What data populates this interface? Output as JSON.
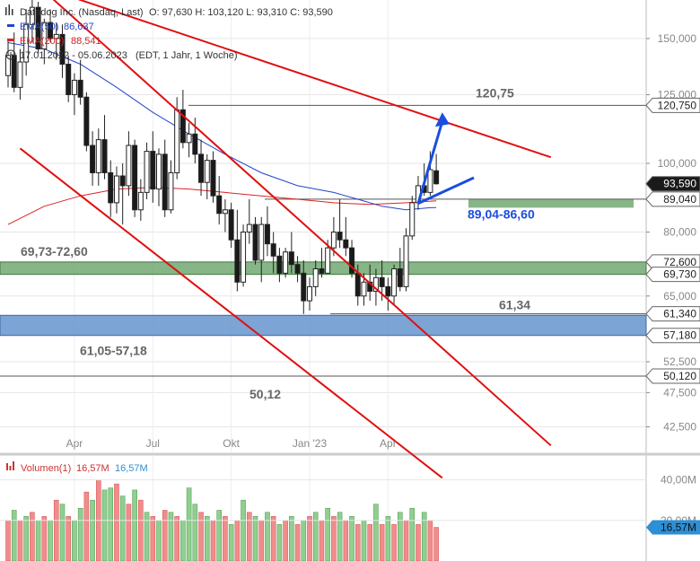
{
  "header": {
    "title": "Datadog Inc. (Nasdaq, Last)",
    "ohlc": "O: 97,630  H: 103,120  L: 93,310  C: 93,590",
    "ema50_label": "EMA(50)",
    "ema50_value": "86,637",
    "ema200_label": "EMA(200)",
    "ema200_value": "88,541",
    "period": "17.01.2022 - 05.06.2023",
    "period_note": "(EDT, 1 Jahr, 1 Woche)"
  },
  "colors": {
    "up": "#ffffff",
    "down": "#1a1a1a",
    "ema50": "#2244cc",
    "ema200": "#dd2222",
    "trendline": "#e01010",
    "zone_green": "#5f9c5f",
    "zone_blue": "#5b8dc9",
    "arrow": "#1a4ee0",
    "price_tag": "#1a1a1a",
    "vol_up": "#8fcf8f",
    "vol_down": "#f28c8c",
    "vol_tag": "#2d8fd6"
  },
  "price_axis": {
    "ticks": [
      {
        "value": 150,
        "label": "150,000"
      },
      {
        "value": 125,
        "label": "125,000"
      },
      {
        "value": 100,
        "label": "100,000"
      },
      {
        "value": 80,
        "label": "80,000"
      },
      {
        "value": 65,
        "label": "65,000"
      },
      {
        "value": 52.5,
        "label": "52,500"
      },
      {
        "value": 47.5,
        "label": "47,500"
      },
      {
        "value": 42.5,
        "label": "42,500"
      }
    ],
    "tags": [
      {
        "value": 120.75,
        "label": "120,750",
        "style": "outline"
      },
      {
        "value": 93.59,
        "label": "93,590",
        "style": "dark"
      },
      {
        "value": 89.04,
        "label": "89,040",
        "style": "outline"
      },
      {
        "value": 72.6,
        "label": "72,600",
        "style": "outline"
      },
      {
        "value": 69.73,
        "label": "69,730",
        "style": "outline"
      },
      {
        "value": 61.34,
        "label": "61,340",
        "style": "outline"
      },
      {
        "value": 57.18,
        "label": "57,180",
        "style": "outline"
      },
      {
        "value": 50.12,
        "label": "50,120",
        "style": "outline"
      }
    ]
  },
  "time_axis": {
    "labels": [
      {
        "week": 11,
        "label": "Apr"
      },
      {
        "week": 24,
        "label": "Jul"
      },
      {
        "week": 37,
        "label": "Okt"
      },
      {
        "week": 50,
        "label": "Jan '23"
      },
      {
        "week": 63,
        "label": "Apr"
      }
    ]
  },
  "annotations": {
    "level_high": {
      "value": 120.75,
      "text": "120,75"
    },
    "level_high_zone": {
      "text": "69,73-72,60",
      "low": 69.73,
      "high": 72.6
    },
    "level_low": {
      "value": 61.34,
      "text": "61,34"
    },
    "zone_low": {
      "text": "61,05-57,18",
      "low": 57.18,
      "high": 61.05
    },
    "level_bottom": {
      "value": 50.12,
      "text": "50,12"
    },
    "zone_target": {
      "text": "89,04-86,60",
      "low": 86.6,
      "high": 89.04
    }
  },
  "volume": {
    "label": "Volumen(1)",
    "value1": "16,57M",
    "value2": "16,57M",
    "ticks": [
      {
        "value": 40,
        "label": "40,00M"
      },
      {
        "value": 20,
        "label": "20,00M"
      }
    ],
    "tag": {
      "value": 16.57,
      "label": "16,57M"
    }
  },
  "chart_data": {
    "type": "candlestick",
    "title": "Datadog Inc. (Nasdaq, Last)",
    "ylim": [
      39,
      170
    ],
    "y_scale": "log",
    "candles": [
      [
        133,
        150,
        128,
        142
      ],
      [
        142,
        153,
        126,
        128
      ],
      [
        128,
        145,
        123,
        139
      ],
      [
        139,
        165,
        133,
        157
      ],
      [
        157,
        171,
        148,
        166
      ],
      [
        166,
        169,
        143,
        145
      ],
      [
        145,
        160,
        138,
        158
      ],
      [
        158,
        165,
        148,
        150
      ],
      [
        150,
        158,
        140,
        152
      ],
      [
        152,
        157,
        132,
        138
      ],
      [
        138,
        142,
        122,
        125
      ],
      [
        125,
        134,
        117,
        131
      ],
      [
        131,
        140,
        121,
        124
      ],
      [
        124,
        126,
        104,
        106
      ],
      [
        106,
        111,
        93,
        97
      ],
      [
        97,
        112,
        93,
        108
      ],
      [
        108,
        117,
        95,
        97
      ],
      [
        97,
        101,
        84,
        88
      ],
      [
        88,
        99,
        85,
        96
      ],
      [
        96,
        100,
        82,
        93
      ],
      [
        93,
        111,
        90,
        106
      ],
      [
        106,
        108,
        84,
        86
      ],
      [
        86,
        95,
        83,
        91
      ],
      [
        91,
        107,
        89,
        104
      ],
      [
        104,
        111,
        88,
        92
      ],
      [
        92,
        105,
        87,
        103
      ],
      [
        103,
        108,
        84,
        86
      ],
      [
        86,
        101,
        85,
        97
      ],
      [
        97,
        124,
        95,
        119
      ],
      [
        119,
        127,
        105,
        107
      ],
      [
        107,
        114,
        102,
        110
      ],
      [
        110,
        116,
        100,
        103
      ],
      [
        103,
        108,
        90,
        94
      ],
      [
        94,
        103,
        89,
        101
      ],
      [
        101,
        104,
        88,
        90
      ],
      [
        90,
        96,
        82,
        85
      ],
      [
        85,
        89,
        80,
        86
      ],
      [
        86,
        88,
        76,
        78
      ],
      [
        78,
        86,
        66,
        68
      ],
      [
        68,
        82,
        67,
        80
      ],
      [
        80,
        89,
        77,
        82
      ],
      [
        82,
        84,
        72,
        73
      ],
      [
        73,
        84,
        68,
        82
      ],
      [
        82,
        87,
        74,
        77
      ],
      [
        77,
        80,
        70,
        74
      ],
      [
        74,
        76,
        68,
        70
      ],
      [
        70,
        76,
        69,
        75
      ],
      [
        75,
        80,
        70,
        72
      ],
      [
        72,
        74,
        68,
        70
      ],
      [
        70,
        73,
        61.3,
        64
      ],
      [
        64,
        69,
        62,
        67
      ],
      [
        67,
        73,
        65,
        71
      ],
      [
        71,
        76,
        69,
        70
      ],
      [
        70,
        78,
        70,
        76
      ],
      [
        76,
        84,
        74,
        80
      ],
      [
        80,
        89,
        76,
        78
      ],
      [
        78,
        84,
        74,
        76
      ],
      [
        76,
        78,
        69,
        70
      ],
      [
        70,
        72,
        63,
        65
      ],
      [
        65,
        70,
        63,
        68
      ],
      [
        68,
        72,
        64,
        66
      ],
      [
        66,
        71,
        63,
        69
      ],
      [
        69,
        73,
        64,
        67
      ],
      [
        67,
        69,
        62,
        65
      ],
      [
        65,
        72,
        63,
        71
      ],
      [
        71,
        76,
        66,
        67
      ],
      [
        67,
        81,
        66,
        79
      ],
      [
        79,
        90,
        78,
        88
      ],
      [
        88,
        96,
        86,
        93
      ],
      [
        93,
        100,
        90,
        91
      ],
      [
        91,
        104,
        90,
        98
      ],
      [
        97.63,
        103.12,
        93.31,
        93.59
      ]
    ],
    "ema50": [
      [
        0,
        148
      ],
      [
        6,
        145
      ],
      [
        12,
        138
      ],
      [
        18,
        128
      ],
      [
        24,
        118
      ],
      [
        30,
        110
      ],
      [
        36,
        103
      ],
      [
        42,
        97
      ],
      [
        48,
        93
      ],
      [
        54,
        91
      ],
      [
        58,
        89
      ],
      [
        62,
        87
      ],
      [
        66,
        86
      ],
      [
        70,
        86.6
      ],
      [
        71,
        86.637
      ]
    ],
    "ema200": [
      [
        0,
        82
      ],
      [
        6,
        87
      ],
      [
        12,
        90
      ],
      [
        18,
        92
      ],
      [
        24,
        92.5
      ],
      [
        30,
        92
      ],
      [
        36,
        91
      ],
      [
        42,
        90
      ],
      [
        48,
        89
      ],
      [
        54,
        88
      ],
      [
        60,
        87.5
      ],
      [
        66,
        88
      ],
      [
        71,
        88.541
      ]
    ],
    "volume": [
      [
        20,
        "down"
      ],
      [
        25,
        "up"
      ],
      [
        20,
        "down"
      ],
      [
        22,
        "up"
      ],
      [
        24,
        "down"
      ],
      [
        20,
        "up"
      ],
      [
        22,
        "down"
      ],
      [
        20,
        "up"
      ],
      [
        30,
        "down"
      ],
      [
        28,
        "up"
      ],
      [
        22,
        "down"
      ],
      [
        20,
        "up"
      ],
      [
        26,
        "up"
      ],
      [
        34,
        "down"
      ],
      [
        30,
        "up"
      ],
      [
        40,
        "down"
      ],
      [
        35,
        "up"
      ],
      [
        36,
        "up"
      ],
      [
        38,
        "down"
      ],
      [
        32,
        "up"
      ],
      [
        28,
        "down"
      ],
      [
        35,
        "up"
      ],
      [
        30,
        "down"
      ],
      [
        24,
        "up"
      ],
      [
        22,
        "down"
      ],
      [
        20,
        "up"
      ],
      [
        25,
        "down"
      ],
      [
        24,
        "up"
      ],
      [
        22,
        "down"
      ],
      [
        20,
        "up"
      ],
      [
        36,
        "up"
      ],
      [
        28,
        "up"
      ],
      [
        24,
        "down"
      ],
      [
        22,
        "up"
      ],
      [
        20,
        "down"
      ],
      [
        25,
        "up"
      ],
      [
        22,
        "down"
      ],
      [
        18,
        "up"
      ],
      [
        20,
        "down"
      ],
      [
        30,
        "up"
      ],
      [
        24,
        "down"
      ],
      [
        22,
        "up"
      ],
      [
        20,
        "down"
      ],
      [
        24,
        "up"
      ],
      [
        22,
        "down"
      ],
      [
        18,
        "up"
      ],
      [
        20,
        "down"
      ],
      [
        22,
        "up"
      ],
      [
        18,
        "down"
      ],
      [
        20,
        "up"
      ],
      [
        22,
        "down"
      ],
      [
        24,
        "up"
      ],
      [
        20,
        "down"
      ],
      [
        26,
        "up"
      ],
      [
        22,
        "down"
      ],
      [
        24,
        "up"
      ],
      [
        20,
        "down"
      ],
      [
        22,
        "up"
      ],
      [
        18,
        "down"
      ],
      [
        20,
        "up"
      ],
      [
        18,
        "down"
      ],
      [
        28,
        "up"
      ],
      [
        18,
        "down"
      ],
      [
        22,
        "up"
      ],
      [
        18,
        "down"
      ],
      [
        24,
        "up"
      ],
      [
        20,
        "down"
      ],
      [
        26,
        "up"
      ],
      [
        18,
        "down"
      ],
      [
        24,
        "up"
      ],
      [
        20,
        "down"
      ],
      [
        16.57,
        "down"
      ]
    ],
    "trendlines": [
      {
        "from": [
          2,
          105
        ],
        "to": [
          72,
          36
        ]
      },
      {
        "from": [
          5,
          178
        ],
        "to": [
          90,
          40
        ]
      },
      {
        "from": [
          5,
          178
        ],
        "to": [
          90,
          102
        ]
      }
    ],
    "arrow": {
      "from": [
        68,
        87.8
      ],
      "to": [
        72,
        118
      ]
    }
  }
}
